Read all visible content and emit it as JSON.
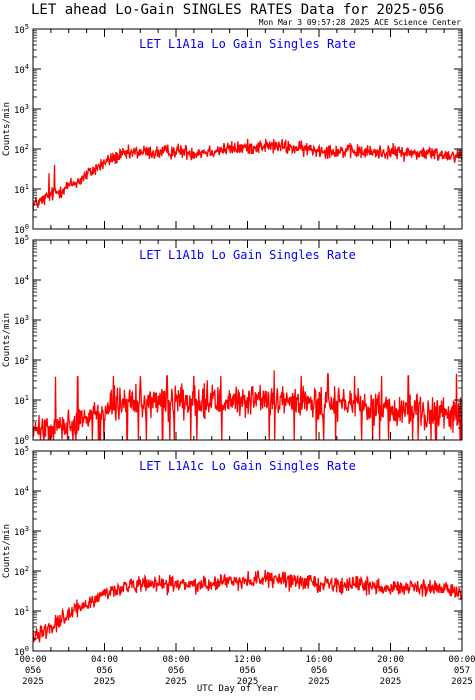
{
  "header": {
    "title": "LET ahead Lo-Gain SINGLES RATES Data for 2025-056",
    "timestamp": "Mon Mar  3 09:57:28 2025 ACE Science Center"
  },
  "colors": {
    "series": "#ff0000",
    "panel_title": "#0000ff",
    "axes": "#000000"
  },
  "chart_data": [
    {
      "type": "line",
      "title": "LET L1A1a Lo Gain Singles Rate",
      "ylabel": "Counts/min",
      "yscale": "log",
      "ylim": [
        1,
        100000
      ],
      "xlim": [
        0,
        24
      ],
      "x_unit": "hours UTC",
      "y_tick_labels": [
        "10^0",
        "10^1",
        "10^2",
        "10^3",
        "10^4",
        "10^5"
      ],
      "trend": {
        "x": [
          0,
          0.5,
          1,
          1.5,
          2,
          2.5,
          3,
          3.5,
          4,
          4.5,
          5,
          6,
          7,
          8,
          9,
          10,
          11,
          12,
          13,
          14,
          15,
          16,
          17,
          18,
          19,
          20,
          21,
          22,
          23,
          24
        ],
        "y": [
          4,
          5,
          7,
          9,
          12,
          15,
          22,
          32,
          45,
          60,
          70,
          85,
          80,
          90,
          80,
          90,
          100,
          110,
          120,
          115,
          100,
          95,
          90,
          85,
          82,
          85,
          80,
          78,
          72,
          70
        ]
      },
      "noise": 0.55,
      "spikes": [
        {
          "x": 1.2,
          "y": 40
        },
        {
          "x": 0.9,
          "y": 25
        }
      ]
    },
    {
      "type": "line",
      "title": "LET L1A1b Lo Gain Singles Rate",
      "ylabel": "Counts/min",
      "yscale": "log",
      "ylim": [
        1,
        100000
      ],
      "xlim": [
        0,
        24
      ],
      "x_unit": "hours UTC",
      "y_tick_labels": [
        "10^0",
        "10^1",
        "10^2",
        "10^3",
        "10^4",
        "10^5"
      ],
      "trend": {
        "x": [
          0,
          1,
          2,
          3,
          4,
          5,
          6,
          8,
          10,
          12,
          14,
          16,
          18,
          20,
          22,
          24
        ],
        "y": [
          1.5,
          2,
          2.5,
          4,
          6,
          8,
          9,
          9,
          9,
          10,
          9,
          8,
          7,
          6,
          5,
          4
        ]
      },
      "noise": 1.2,
      "spikes": [
        {
          "x": 1.25,
          "y": 38
        },
        {
          "x": 2.5,
          "y": 38
        },
        {
          "x": 4.5,
          "y": 40
        },
        {
          "x": 6.0,
          "y": 40
        },
        {
          "x": 7.5,
          "y": 40
        },
        {
          "x": 9.0,
          "y": 40
        },
        {
          "x": 10.5,
          "y": 40
        },
        {
          "x": 13.5,
          "y": 55
        },
        {
          "x": 15.0,
          "y": 40
        },
        {
          "x": 16.5,
          "y": 45
        },
        {
          "x": 18.0,
          "y": 40
        },
        {
          "x": 19.5,
          "y": 40
        },
        {
          "x": 21.0,
          "y": 40
        },
        {
          "x": 23.7,
          "y": 45
        }
      ]
    },
    {
      "type": "line",
      "title": "LET L1A1c Lo Gain Singles Rate",
      "ylabel": "Counts/min",
      "yscale": "log",
      "ylim": [
        1,
        100000
      ],
      "xlim": [
        0,
        24
      ],
      "x_unit": "hours UTC",
      "y_tick_labels": [
        "10^0",
        "10^1",
        "10^2",
        "10^3",
        "10^4",
        "10^5"
      ],
      "x_tick_labels": [
        {
          "time": "00:00",
          "day": "056",
          "year": "2025"
        },
        {
          "time": "04:00",
          "day": "056",
          "year": "2025"
        },
        {
          "time": "08:00",
          "day": "056",
          "year": "2025"
        },
        {
          "time": "12:00",
          "day": "056",
          "year": "2025"
        },
        {
          "time": "16:00",
          "day": "056",
          "year": "2025"
        },
        {
          "time": "20:00",
          "day": "056",
          "year": "2025"
        },
        {
          "time": "00:00",
          "day": "057",
          "year": "2025"
        }
      ],
      "xlabel": "UTC Day of Year",
      "trend": {
        "x": [
          0,
          0.5,
          1,
          1.5,
          2,
          2.5,
          3,
          3.5,
          4,
          4.5,
          5,
          6,
          7,
          8,
          9,
          10,
          11,
          12,
          13,
          14,
          15,
          16,
          17,
          18,
          19,
          20,
          21,
          22,
          23,
          24
        ],
        "y": [
          2.5,
          3,
          4,
          6,
          8,
          11,
          15,
          20,
          27,
          33,
          38,
          45,
          45,
          47,
          45,
          50,
          55,
          60,
          65,
          58,
          55,
          50,
          45,
          45,
          42,
          40,
          38,
          37,
          34,
          32
        ]
      },
      "noise": 0.6,
      "spikes": [
        {
          "x": 1.25,
          "y": 8
        }
      ]
    }
  ]
}
